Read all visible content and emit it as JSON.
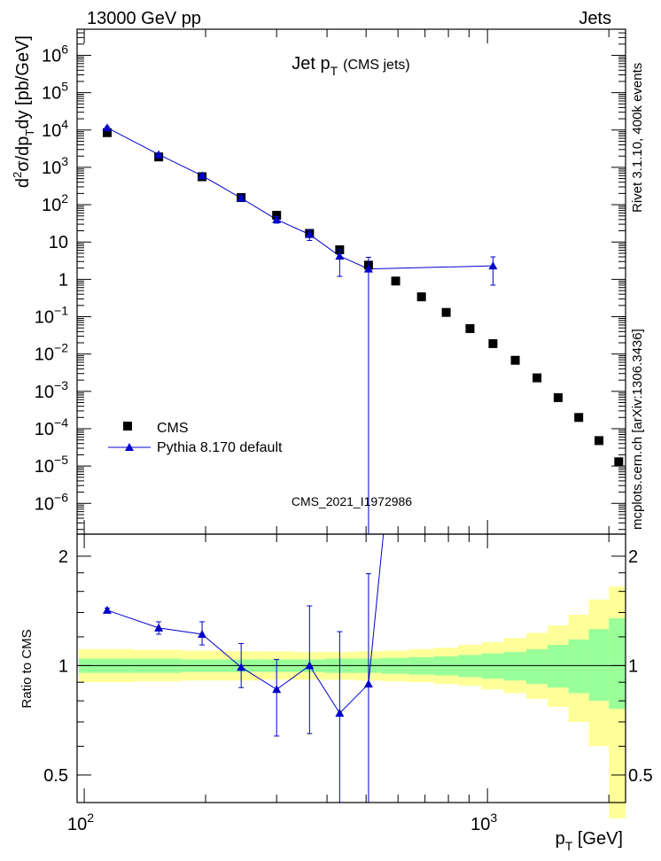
{
  "header": {
    "energy_label": "13000 GeV pp",
    "category_label": "Jets"
  },
  "side_labels": {
    "rivet": "Rivet 3.1.10,  400k events",
    "mcplots": "mcplots.cern.ch [arXiv:1306.3436]"
  },
  "chart_data": [
    {
      "type": "scatter",
      "panel": "main",
      "title": "Jet p",
      "title_sub": "T",
      "title_suffix": "(CMS jets)",
      "watermark": "CMS_2021_I1972986",
      "ylabel": "d²σ/dp_T dy [pb/GeV]",
      "xscale": "log",
      "yscale": "log",
      "xlim": [
        96,
        2200
      ],
      "ylim": [
        1.5e-07,
        5000000.0
      ],
      "x_ticks": [
        {
          "value": 100,
          "label": "10",
          "exp": "2"
        },
        {
          "value": 1000,
          "label": "10",
          "exp": "3"
        }
      ],
      "y_ticks": [
        {
          "value": 1000000.0,
          "label": "10",
          "exp": "6"
        },
        {
          "value": 100000.0,
          "label": "10",
          "exp": "5"
        },
        {
          "value": 10000.0,
          "label": "10",
          "exp": "4"
        },
        {
          "value": 1000.0,
          "label": "10",
          "exp": "3"
        },
        {
          "value": 100.0,
          "label": "10",
          "exp": "2"
        },
        {
          "value": 10,
          "label": "10",
          "exp": ""
        },
        {
          "value": 1,
          "label": "1",
          "exp": ""
        },
        {
          "value": 0.1,
          "label": "10",
          "exp": "−1"
        },
        {
          "value": 0.01,
          "label": "10",
          "exp": "−2"
        },
        {
          "value": 0.001,
          "label": "10",
          "exp": "−3"
        },
        {
          "value": 0.0001,
          "label": "10",
          "exp": "−4"
        },
        {
          "value": 1e-05,
          "label": "10",
          "exp": "−5"
        },
        {
          "value": 1e-06,
          "label": "10",
          "exp": "−6"
        }
      ],
      "legend": {
        "position": "bottom-left",
        "entries": [
          "CMS",
          "Pythia 8.170 default"
        ]
      },
      "series": [
        {
          "name": "CMS",
          "marker": "square",
          "color": "#000000",
          "x": [
            114,
            153,
            196,
            245,
            300,
            362,
            430,
            507,
            592,
            686,
            790,
            905,
            1032,
            1172,
            1327,
            1497,
            1684,
            1890,
            2116
          ],
          "y": [
            8500,
            1900,
            560,
            155,
            52,
            17,
            6.2,
            2.4,
            0.9,
            0.34,
            0.13,
            0.048,
            0.019,
            0.0068,
            0.0023,
            0.00068,
            0.0002,
            4.8e-05,
            1.3e-05
          ]
        },
        {
          "name": "Pythia 8.170 default",
          "marker": "triangle",
          "color": "#0000cc",
          "x": [
            114,
            153,
            196,
            245,
            300,
            362,
            430,
            507,
            1032
          ],
          "y": [
            11500,
            2200,
            600,
            150,
            40,
            16,
            4.2,
            1.9,
            2.3
          ],
          "yerr_low": [
            700,
            200,
            60,
            20,
            8,
            5,
            3.0,
            1.9,
            1.6
          ],
          "yerr_high": [
            700,
            200,
            60,
            20,
            8,
            5,
            2.0,
            2.0,
            1.7
          ]
        }
      ]
    },
    {
      "type": "scatter",
      "panel": "ratio",
      "ylabel": "Ratio to CMS",
      "xlabel": "p_T [GeV]",
      "xscale": "log",
      "yscale": "log",
      "xlim": [
        96,
        2200
      ],
      "ylim": [
        0.42,
        2.3
      ],
      "y_ticks": [
        {
          "value": 2,
          "label": "2"
        },
        {
          "value": 1,
          "label": "1"
        },
        {
          "value": 0.5,
          "label": "0.5"
        }
      ],
      "reference_line": 1,
      "uncertainty_bands": {
        "bin_edges": [
          97,
          133,
          174,
          220,
          272,
          330,
          395,
          468,
          548,
          638,
          737,
          846,
          967,
          1100,
          1248,
          1410,
          1588,
          1784,
          2000,
          2200
        ],
        "inner": {
          "color": "#99ff99",
          "low": [
            0.955,
            0.955,
            0.96,
            0.96,
            0.96,
            0.96,
            0.955,
            0.955,
            0.95,
            0.945,
            0.94,
            0.93,
            0.92,
            0.91,
            0.89,
            0.87,
            0.84,
            0.8,
            0.76
          ],
          "high": [
            1.045,
            1.045,
            1.04,
            1.04,
            1.04,
            1.04,
            1.045,
            1.045,
            1.05,
            1.055,
            1.06,
            1.07,
            1.08,
            1.09,
            1.11,
            1.14,
            1.18,
            1.26,
            1.35
          ]
        },
        "outer": {
          "color": "#ffff99",
          "low": [
            0.9,
            0.905,
            0.91,
            0.91,
            0.915,
            0.915,
            0.915,
            0.91,
            0.905,
            0.9,
            0.89,
            0.88,
            0.86,
            0.84,
            0.81,
            0.77,
            0.7,
            0.6,
            0.38
          ],
          "high": [
            1.11,
            1.105,
            1.1,
            1.095,
            1.095,
            1.09,
            1.09,
            1.095,
            1.1,
            1.11,
            1.12,
            1.14,
            1.16,
            1.19,
            1.23,
            1.29,
            1.38,
            1.52,
            1.65
          ]
        }
      },
      "series": [
        {
          "name": "Pythia 8.170 default",
          "marker": "triangle",
          "color": "#0000cc",
          "x": [
            114,
            153,
            196,
            245,
            300,
            362,
            430,
            507
          ],
          "y": [
            1.42,
            1.27,
            1.22,
            0.99,
            0.86,
            1.0,
            0.74,
            0.89
          ],
          "yerr_low": [
            0.02,
            0.05,
            0.08,
            0.12,
            0.22,
            0.35,
            0.35,
            0.5
          ],
          "yerr_high": [
            0.02,
            0.05,
            0.1,
            0.16,
            0.18,
            0.46,
            0.5,
            0.9
          ],
          "overflow_segment_to_x": 592
        }
      ]
    }
  ]
}
